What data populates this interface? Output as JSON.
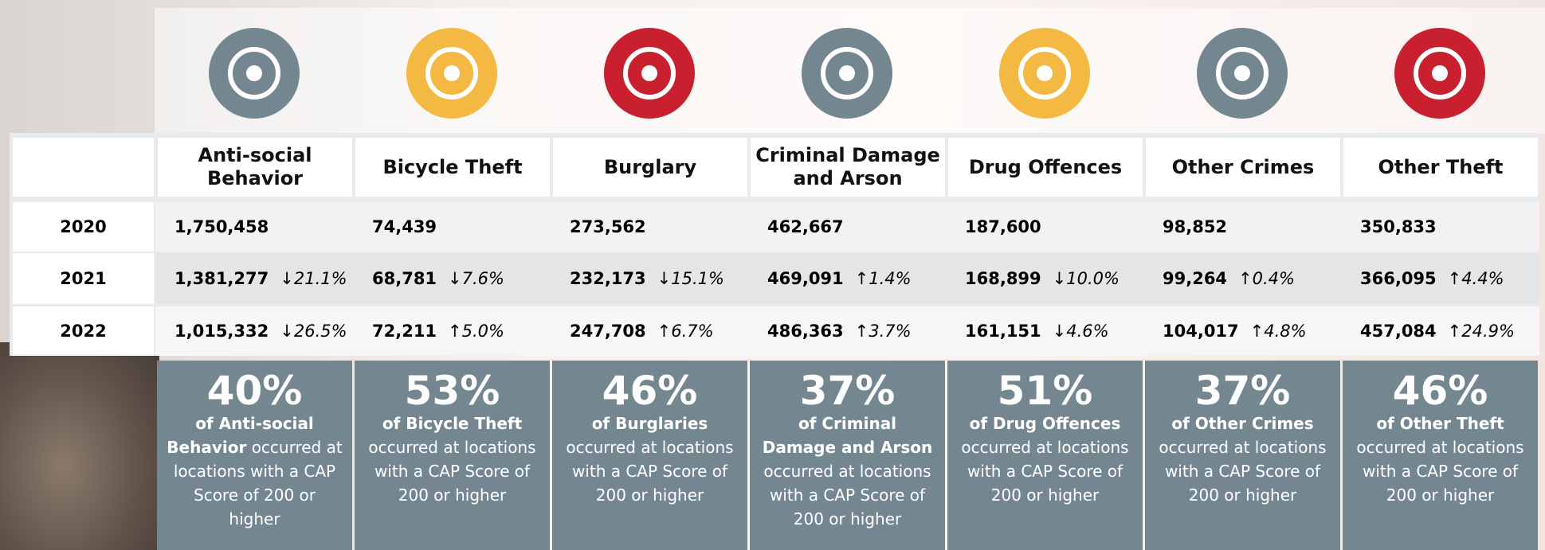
{
  "table": {
    "headers": [
      "Anti-social Behavior",
      "Bicycle Theft",
      "Burglary",
      "Criminal Damage and Arson",
      "Drug Offences",
      "Other Crimes",
      "Other Theft"
    ],
    "rows": [
      {
        "year": "2020",
        "cells": [
          {
            "count": "1,750,458"
          },
          {
            "count": "74,439"
          },
          {
            "count": "273,562"
          },
          {
            "count": "462,667"
          },
          {
            "count": "187,600"
          },
          {
            "count": "98,852"
          },
          {
            "count": "350,833"
          }
        ]
      },
      {
        "year": "2021",
        "cells": [
          {
            "count": "1,381,277",
            "change": "↓21.1%"
          },
          {
            "count": "68,781",
            "change": "↓7.6%"
          },
          {
            "count": "232,173",
            "change": "↓15.1%"
          },
          {
            "count": "469,091",
            "change": "↑1.4%"
          },
          {
            "count": "168,899",
            "change": "↓10.0%"
          },
          {
            "count": "99,264",
            "change": "↑0.4%"
          },
          {
            "count": "366,095",
            "change": "↑4.4%"
          }
        ]
      },
      {
        "year": "2022",
        "cells": [
          {
            "count": "1,015,332",
            "change": "↓26.5%"
          },
          {
            "count": "72,211",
            "change": "↑5.0%"
          },
          {
            "count": "247,708",
            "change": "↑6.7%"
          },
          {
            "count": "486,363",
            "change": "↑3.7%"
          },
          {
            "count": "161,151",
            "change": "↓4.6%"
          },
          {
            "count": "104,017",
            "change": "↑4.8%"
          },
          {
            "count": "457,084",
            "change": "↑24.9%"
          }
        ]
      }
    ]
  },
  "summary": [
    {
      "percent": "40%",
      "bold": "of Anti-social Behavior",
      "text": "occurred at locations with a CAP Score of 200 or higher"
    },
    {
      "percent": "53%",
      "bold": "of Bicycle Theft",
      "text": "occurred at locations with a CAP Score of 200 or higher"
    },
    {
      "percent": "46%",
      "bold": "of Burglaries",
      "text": "occurred at locations with a CAP Score of 200 or higher"
    },
    {
      "percent": "37%",
      "bold": "of Criminal Damage and Arson",
      "text": "occurred at locations with a CAP Score of 200 or higher"
    },
    {
      "percent": "51%",
      "bold": "of Drug Offences",
      "text": "occurred at locations with a CAP Score of 200 or higher"
    },
    {
      "percent": "37%",
      "bold": "of Other Crimes",
      "text": "occurred at locations with a CAP Score of 200 or higher"
    },
    {
      "percent": "46%",
      "bold": "of Other Theft",
      "text": "occurred at locations with a CAP Score of 200 or higher"
    }
  ]
}
